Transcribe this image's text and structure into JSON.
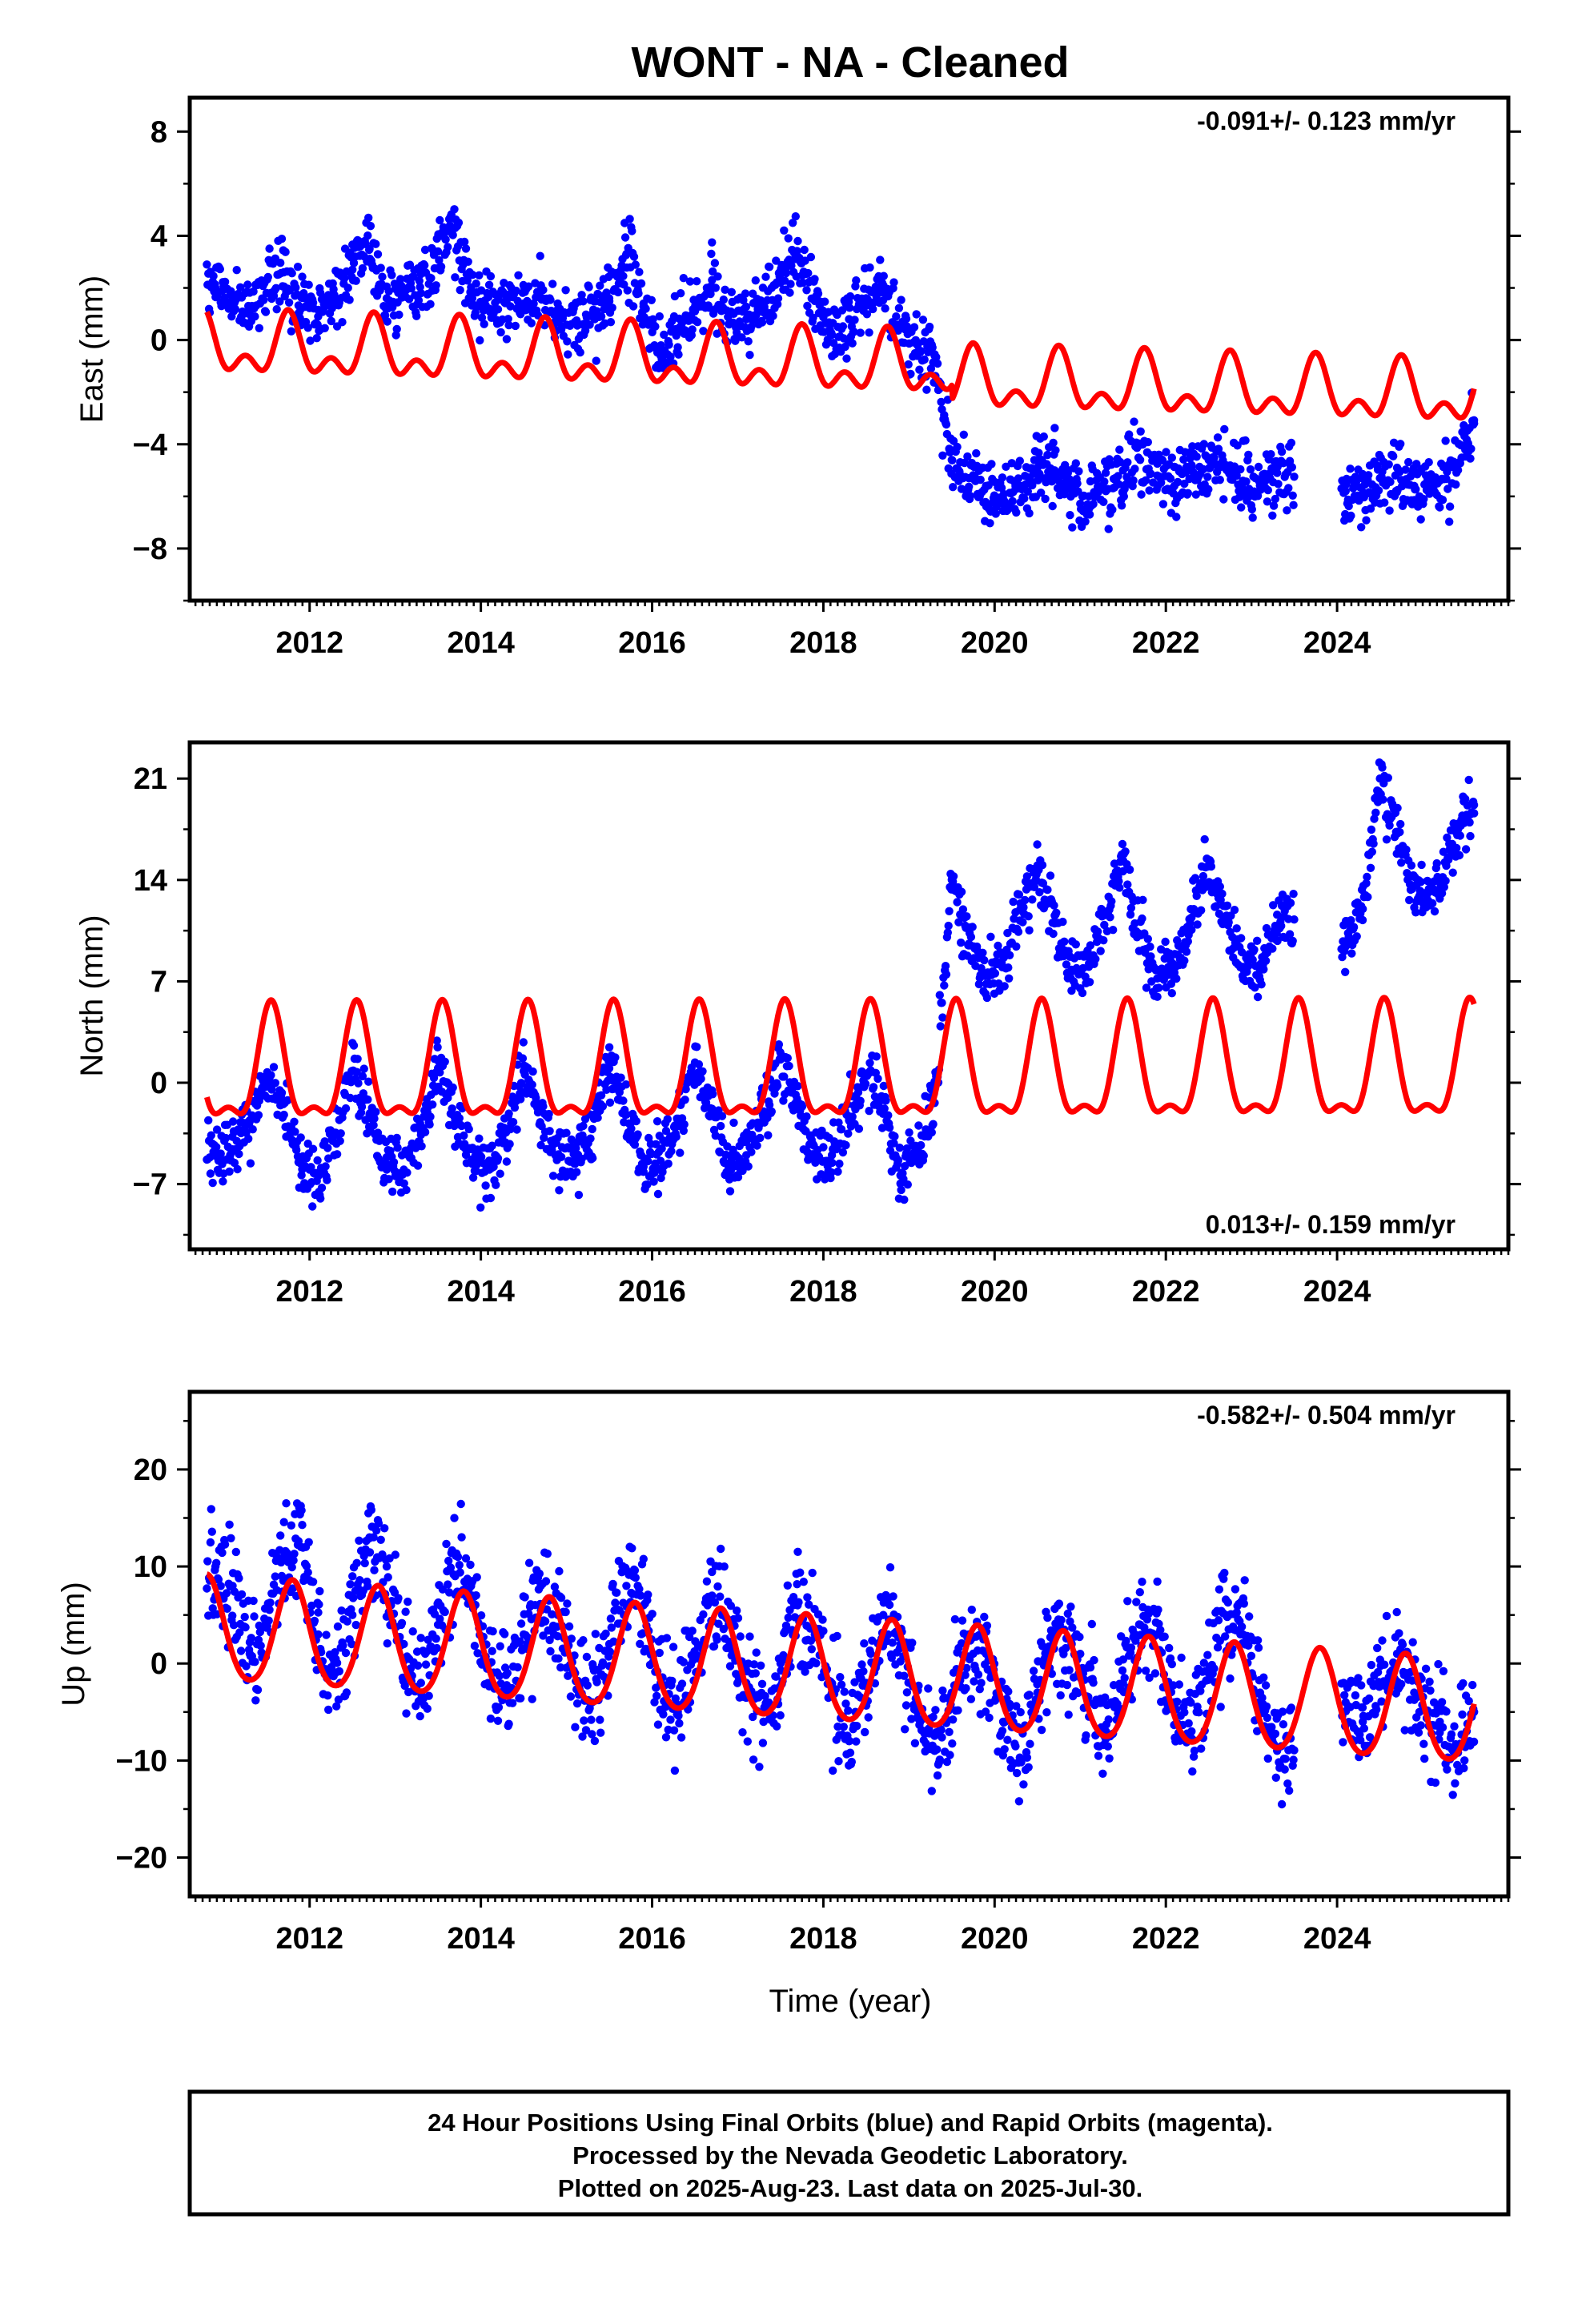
{
  "title": "WONT  - NA - Cleaned",
  "colors": {
    "final_orbits": "#0000ff",
    "rapid_orbits": "#ff00ff",
    "model_fit": "#ff0000",
    "axes": "#000000"
  },
  "chart_data": [
    {
      "type": "scatter",
      "ylabel": "East (mm)",
      "xlabel": "",
      "rate_label": "-0.091+/- 0.123 mm/yr",
      "rate_position": "top-right",
      "xlim": [
        2010.6,
        2026.0
      ],
      "ylim": [
        -10.0,
        9.3
      ],
      "x_ticks": [
        2012,
        2014,
        2016,
        2018,
        2020,
        2022,
        2024
      ],
      "x_tick_labels": [
        "2012",
        "2014",
        "2016",
        "2018",
        "2020",
        "2022",
        "2024"
      ],
      "y_ticks": [
        -8,
        -4,
        0,
        4,
        8
      ],
      "y_tick_labels": [
        "−8",
        "−4",
        "0",
        "4",
        "8"
      ],
      "series": [
        {
          "name": "24 Hour Positions (Final Orbits)",
          "kind": "points",
          "approx_time_span": [
            2010.8,
            2025.6
          ],
          "x": [
            2010.9,
            2011.1,
            2011.3,
            2011.5,
            2011.7,
            2011.9,
            2012.1,
            2012.3,
            2012.5,
            2012.7,
            2012.9,
            2013.1,
            2013.3,
            2013.5,
            2013.7,
            2013.9,
            2014.1,
            2014.3,
            2014.5,
            2014.7,
            2014.9,
            2015.1,
            2015.3,
            2015.5,
            2015.7,
            2015.9,
            2016.1,
            2016.3,
            2016.5,
            2016.7,
            2016.9,
            2017.1,
            2017.3,
            2017.5,
            2017.7,
            2017.9,
            2018.1,
            2018.3,
            2018.5,
            2018.7,
            2018.9,
            2019.1,
            2019.3,
            2019.5,
            2019.7,
            2019.9,
            2020.1,
            2020.3,
            2020.5,
            2020.7,
            2020.9,
            2021.1,
            2021.3,
            2021.5,
            2021.7,
            2021.9,
            2022.1,
            2022.3,
            2022.5,
            2022.7,
            2022.9,
            2023.1,
            2023.3,
            2024.1,
            2024.3,
            2024.5,
            2024.7,
            2024.9,
            2025.2,
            2025.4,
            2025.6
          ],
          "y": [
            2.0,
            1.6,
            1.2,
            1.8,
            2.6,
            1.2,
            0.9,
            1.6,
            2.7,
            3.5,
            1.6,
            1.9,
            1.8,
            3.4,
            4.3,
            1.6,
            1.2,
            1.5,
            1.4,
            2.1,
            0.9,
            0.7,
            1.0,
            1.6,
            3.3,
            1.4,
            -0.6,
            0.3,
            1.1,
            2.3,
            0.6,
            0.8,
            1.2,
            2.2,
            3.2,
            1.5,
            0.2,
            0.8,
            1.6,
            2.1,
            0.6,
            -0.2,
            -0.6,
            -4.6,
            -5.3,
            -5.6,
            -6.1,
            -5.6,
            -4.9,
            -5.0,
            -5.8,
            -6.0,
            -5.8,
            -5.0,
            -4.6,
            -5.2,
            -5.6,
            -4.8,
            -4.6,
            -4.8,
            -5.4,
            -5.6,
            -5.1,
            -5.8,
            -5.9,
            -5.3,
            -4.9,
            -5.6,
            -5.4,
            -4.8,
            -3.2
          ]
        },
        {
          "name": "Model fit",
          "kind": "line",
          "model": {
            "intercept_2010.8": -0.3,
            "rate_mm_per_yr": -0.091,
            "offset_at": 2019.5,
            "offset_mm": -0.55,
            "annual_amp": 0.9,
            "semiannual_amp": 0.65,
            "annual_peak_phase_yr": 0.75,
            "semiannual_peak_phase_yr": 0.25
          }
        }
      ]
    },
    {
      "type": "scatter",
      "ylabel": "North (mm)",
      "xlabel": "",
      "rate_label": "0.013+/- 0.159 mm/yr",
      "rate_position": "bottom-right",
      "xlim": [
        2010.6,
        2026.0
      ],
      "ylim": [
        -11.5,
        23.5
      ],
      "x_ticks": [
        2012,
        2014,
        2016,
        2018,
        2020,
        2022,
        2024
      ],
      "x_tick_labels": [
        "2012",
        "2014",
        "2016",
        "2018",
        "2020",
        "2022",
        "2024"
      ],
      "y_ticks": [
        -7,
        0,
        7,
        14,
        21
      ],
      "y_tick_labels": [
        "−7",
        "0",
        "7",
        "14",
        "21"
      ],
      "series": [
        {
          "name": "24 Hour Positions (Final Orbits)",
          "kind": "points",
          "approx_time_span": [
            2010.8,
            2025.6
          ],
          "x": [
            2010.9,
            2011.1,
            2011.3,
            2011.5,
            2011.7,
            2011.9,
            2012.1,
            2012.3,
            2012.5,
            2012.7,
            2012.9,
            2013.1,
            2013.3,
            2013.5,
            2013.7,
            2013.9,
            2014.1,
            2014.3,
            2014.5,
            2014.7,
            2014.9,
            2015.1,
            2015.3,
            2015.5,
            2015.7,
            2015.9,
            2016.1,
            2016.3,
            2016.5,
            2016.7,
            2016.9,
            2017.1,
            2017.3,
            2017.5,
            2017.7,
            2017.9,
            2018.1,
            2018.3,
            2018.5,
            2018.7,
            2018.9,
            2019.1,
            2019.3,
            2019.5,
            2019.7,
            2019.9,
            2020.1,
            2020.3,
            2020.5,
            2020.7,
            2020.9,
            2021.1,
            2021.3,
            2021.5,
            2021.7,
            2021.9,
            2022.1,
            2022.3,
            2022.5,
            2022.7,
            2022.9,
            2023.1,
            2023.3,
            2024.1,
            2024.3,
            2024.5,
            2024.7,
            2024.9,
            2025.2,
            2025.4,
            2025.6
          ],
          "y": [
            -5.0,
            -4.6,
            -2.6,
            0.2,
            -1.4,
            -5.6,
            -6.4,
            -3.6,
            0.8,
            -2.2,
            -6.0,
            -6.0,
            -3.6,
            1.0,
            -2.6,
            -5.6,
            -6.0,
            -3.2,
            0.8,
            -2.0,
            -5.2,
            -5.6,
            -3.2,
            1.0,
            -2.2,
            -5.8,
            -5.4,
            -3.0,
            1.4,
            -1.8,
            -5.6,
            -5.0,
            -2.4,
            1.6,
            -1.6,
            -5.2,
            -5.0,
            -2.6,
            0.6,
            -1.2,
            -6.4,
            -5.0,
            -1.4,
            14.0,
            9.6,
            7.4,
            8.0,
            12.0,
            15.0,
            11.0,
            7.8,
            8.0,
            11.6,
            14.6,
            10.2,
            7.2,
            7.6,
            11.4,
            15.0,
            11.4,
            8.0,
            7.8,
            11.6,
            9.4,
            12.0,
            21.0,
            17.2,
            13.6,
            13.4,
            17.6,
            18.6
          ]
        },
        {
          "name": "Model fit",
          "kind": "line",
          "model": {
            "intercept_2010.8": 0.5,
            "rate_mm_per_yr": 0.013,
            "annual_amp": 3.7,
            "semiannual_amp": 1.5,
            "annual_peak_phase_yr": 0.55,
            "semiannual_peak_phase_yr": 0.05
          }
        }
      ]
    },
    {
      "type": "scatter",
      "ylabel": "Up (mm)",
      "xlabel": "Time (year)",
      "rate_label": "-0.582+/- 0.504 mm/yr",
      "rate_position": "top-right",
      "xlim": [
        2010.6,
        2026.0
      ],
      "ylim": [
        -24.0,
        28.0
      ],
      "x_ticks": [
        2012,
        2014,
        2016,
        2018,
        2020,
        2022,
        2024
      ],
      "x_tick_labels": [
        "2012",
        "2014",
        "2016",
        "2018",
        "2020",
        "2022",
        "2024"
      ],
      "y_ticks": [
        -20,
        -10,
        0,
        10,
        20
      ],
      "y_tick_labels": [
        "−20",
        "−10",
        "0",
        "10",
        "20"
      ],
      "series": [
        {
          "name": "24 Hour Positions (Final Orbits)",
          "kind": "points",
          "approx_time_span": [
            2010.8,
            2025.6
          ],
          "x": [
            2010.9,
            2011.1,
            2011.3,
            2011.5,
            2011.7,
            2011.9,
            2012.1,
            2012.3,
            2012.5,
            2012.7,
            2012.9,
            2013.1,
            2013.3,
            2013.5,
            2013.7,
            2013.9,
            2014.1,
            2014.3,
            2014.5,
            2014.7,
            2014.9,
            2015.1,
            2015.3,
            2015.5,
            2015.7,
            2015.9,
            2016.1,
            2016.3,
            2016.5,
            2016.7,
            2016.9,
            2017.1,
            2017.3,
            2017.5,
            2017.7,
            2017.9,
            2018.1,
            2018.3,
            2018.5,
            2018.7,
            2018.9,
            2019.1,
            2019.3,
            2019.5,
            2019.7,
            2019.9,
            2020.1,
            2020.3,
            2020.5,
            2020.7,
            2020.9,
            2021.1,
            2021.3,
            2021.5,
            2021.7,
            2021.9,
            2022.1,
            2022.3,
            2022.5,
            2022.7,
            2022.9,
            2023.1,
            2023.3,
            2024.1,
            2024.3,
            2024.5,
            2024.7,
            2024.9,
            2025.2,
            2025.4,
            2025.6
          ],
          "y": [
            10.0,
            8.0,
            1.0,
            4.0,
            11.0,
            12.0,
            3.0,
            -1.0,
            5.0,
            13.0,
            10.0,
            2.0,
            -2.0,
            4.0,
            9.0,
            7.0,
            0.0,
            -3.0,
            3.0,
            8.0,
            5.0,
            -1.0,
            -4.0,
            2.0,
            8.0,
            6.0,
            -2.0,
            -5.0,
            1.0,
            7.0,
            4.0,
            -2.0,
            -6.0,
            0.0,
            6.0,
            3.0,
            -3.0,
            -8.0,
            -2.0,
            5.0,
            2.0,
            -5.0,
            -9.0,
            -3.0,
            3.0,
            1.0,
            -6.0,
            -10.0,
            -3.0,
            3.0,
            2.0,
            -4.0,
            -7.0,
            -2.0,
            4.0,
            3.0,
            -4.0,
            -7.0,
            -1.0,
            5.0,
            3.0,
            -3.0,
            -9.0,
            -4.0,
            -6.0,
            -2.0,
            1.0,
            -3.0,
            -6.0,
            -9.0,
            -5.0
          ]
        },
        {
          "name": "Model fit",
          "kind": "line",
          "model": {
            "intercept_2010.8": 3.3,
            "rate_mm_per_yr": -0.582,
            "annual_amp": 5.3,
            "semiannual_amp": 0.6,
            "annual_peak_phase_yr": 0.8,
            "semiannual_peak_phase_yr": 0.3
          }
        }
      ]
    }
  ],
  "footer": {
    "line1": "24 Hour Positions Using Final Orbits (blue) and Rapid Orbits (magenta).",
    "line2": "Processed by the Nevada Geodetic Laboratory.",
    "line3": "Plotted on 2025-Aug-23. Last data on 2025-Jul-30."
  }
}
